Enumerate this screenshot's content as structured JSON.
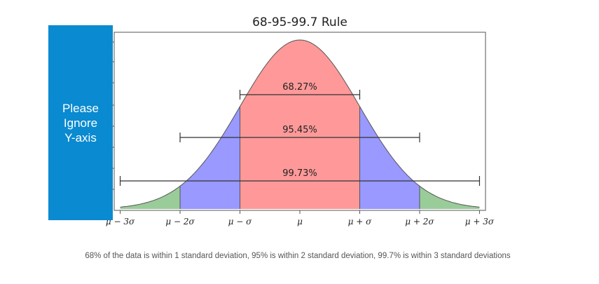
{
  "overlay": {
    "text": "Please\nIgnore\nY-axis"
  },
  "caption": "68% of the data is within 1 standard deviation, 95% is within 2 standard deviation, 99.7% is within 3 standard deviations",
  "colors": {
    "within_1sd": "#ff9999",
    "within_2sd": "#9999ff",
    "within_3sd": "#99cc99",
    "curve": "#555555",
    "overlay_background": "#0a8ad0"
  },
  "chart_data": {
    "type": "area",
    "title": "68-95-99.7 Rule",
    "xlabel": "",
    "ylabel": "",
    "x_range": [
      -3.1,
      3.1
    ],
    "x_ticks": [
      {
        "value": -3,
        "label": "μ − 3σ"
      },
      {
        "value": -2,
        "label": "μ − 2σ"
      },
      {
        "value": -1,
        "label": "μ − σ"
      },
      {
        "value": 0,
        "label": "μ"
      },
      {
        "value": 1,
        "label": "μ + σ"
      },
      {
        "value": 2,
        "label": "μ + 2σ"
      },
      {
        "value": 3,
        "label": "μ + 3σ"
      }
    ],
    "curve": "standard normal density",
    "regions": [
      {
        "from": -1,
        "to": 1,
        "color": "#ff9999"
      },
      {
        "from": -2,
        "to": -1,
        "color": "#9999ff"
      },
      {
        "from": 1,
        "to": 2,
        "color": "#9999ff"
      },
      {
        "from": -3,
        "to": -2,
        "color": "#99cc99"
      },
      {
        "from": 2,
        "to": 3,
        "color": "#99cc99"
      }
    ],
    "intervals": [
      {
        "from": -1,
        "to": 1,
        "label": "68.27%"
      },
      {
        "from": -2,
        "to": 2,
        "label": "95.45%"
      },
      {
        "from": -3,
        "to": 3,
        "label": "99.73%"
      }
    ]
  }
}
